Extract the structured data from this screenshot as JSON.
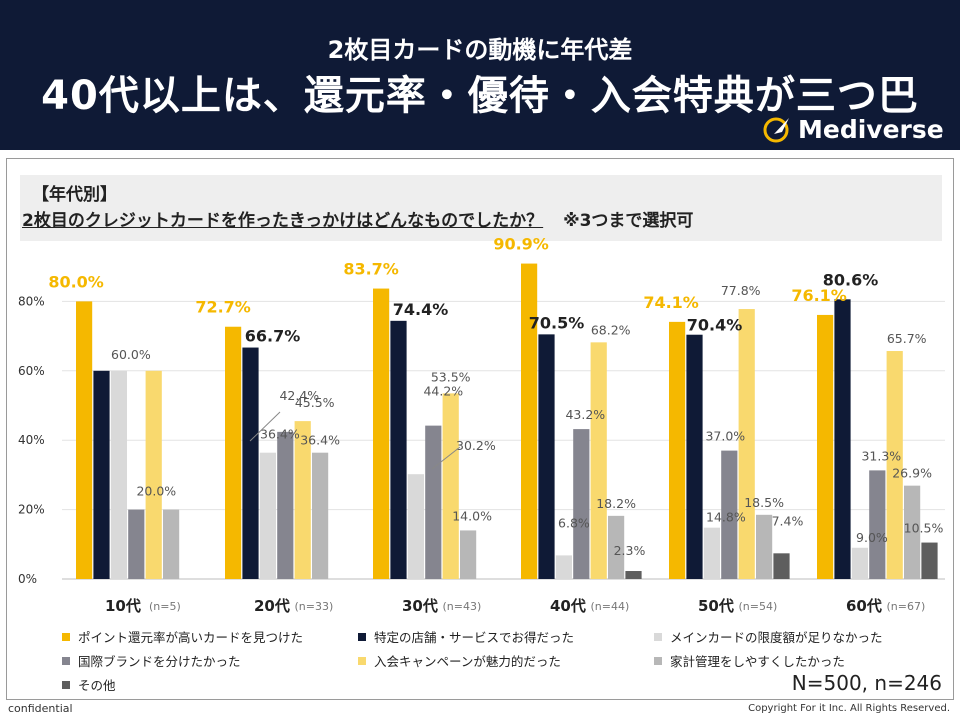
{
  "header": {
    "subtitle": "2枚目カードの動機に年代差",
    "title": "40代以上は、還元率・優待・入会特典が三つ巴",
    "logo": "Mediverse"
  },
  "question": {
    "tag": "【年代別】",
    "text": "2枚目のクレジットカードを作ったきっかけはどんなものでしたか？",
    "note": "※3つまで選択可"
  },
  "sample": "N=500, n=246",
  "footer": {
    "left": "confidential",
    "right": "Copyright For it Inc. All Rights Reserved."
  },
  "chart_data": {
    "type": "bar",
    "ylim": [
      0,
      100
    ],
    "yticks": [
      "0%",
      "20%",
      "40%",
      "60%",
      "80%"
    ],
    "grid": true,
    "legend_position": "bottom",
    "categories": [
      "10代",
      "20代",
      "30代",
      "40代",
      "50代",
      "60代"
    ],
    "category_n": [
      "(n=5)",
      "(n=33)",
      "(n=43)",
      "(n=44)",
      "(n=54)",
      "(n=67)"
    ],
    "series": [
      {
        "name": "ポイント還元率が高いカードを見つけた",
        "color": "#f5b800",
        "values": [
          80.0,
          72.7,
          83.7,
          90.9,
          74.1,
          76.1
        ],
        "labels": [
          "80.0%",
          "72.7%",
          "83.7%",
          "90.9%",
          "74.1%",
          "76.1%"
        ]
      },
      {
        "name": "特定の店舗・サービスでお得だった",
        "color": "#0f1a36",
        "values": [
          60.0,
          66.7,
          74.4,
          70.5,
          70.4,
          80.6
        ],
        "labels": [
          "",
          "66.7%",
          "74.4%",
          "70.5%",
          "70.4%",
          "80.6%"
        ]
      },
      {
        "name": "メインカードの限度額が足りなかった",
        "color": "#d9d9d9",
        "values": [
          60.0,
          36.4,
          30.2,
          6.8,
          14.8,
          9.0
        ],
        "labels": [
          "60.0%",
          "36.4%",
          "30.2%",
          "6.8%",
          "14.8%",
          "9.0%"
        ]
      },
      {
        "name": "国際ブランドを分けたかった",
        "color": "#85858f",
        "values": [
          20.0,
          42.4,
          44.2,
          43.2,
          37.0,
          31.3
        ],
        "labels": [
          "20.0%",
          "42.4%",
          "44.2%",
          "43.2%",
          "37.0%",
          "31.3%"
        ]
      },
      {
        "name": "入会キャンペーンが魅力的だった",
        "color": "#f9d96e",
        "values": [
          60.0,
          45.5,
          53.5,
          68.2,
          77.8,
          65.7
        ],
        "labels": [
          "",
          "45.5%",
          "53.5%",
          "68.2%",
          "77.8%",
          "65.7%"
        ]
      },
      {
        "name": "家計管理をしやすくしたかった",
        "color": "#b7b7b7",
        "values": [
          20.0,
          36.4,
          14.0,
          18.2,
          18.5,
          26.9
        ],
        "labels": [
          "",
          "36.4%",
          "14.0%",
          "18.2%",
          "18.5%",
          "26.9%"
        ]
      },
      {
        "name": "その他",
        "color": "#5e5e5e",
        "values": [
          0.0,
          0.0,
          0.0,
          2.3,
          7.4,
          10.5
        ],
        "labels": [
          "",
          "",
          "",
          "2.3%",
          "7.4%",
          "10.5%"
        ]
      }
    ]
  }
}
